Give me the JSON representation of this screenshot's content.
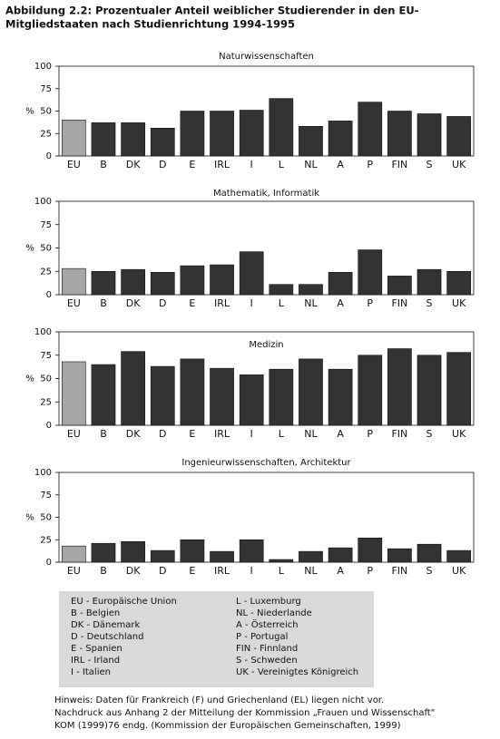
{
  "header": {
    "title_lines": [
      "Abbildung 2.2: Prozentualer Anteil weiblicher Studierender in den EU-",
      "Mitgliedstaaten nach Studienrichtung 1994-1995"
    ]
  },
  "chart_data": [
    {
      "type": "bar",
      "title": "Naturwissenschaften",
      "ylabel": "%",
      "categories": [
        "EU",
        "B",
        "DK",
        "D",
        "E",
        "IRL",
        "I",
        "L",
        "NL",
        "A",
        "P",
        "FIN",
        "S",
        "UK"
      ],
      "values": [
        40,
        37,
        37,
        31,
        50,
        50,
        51,
        64,
        33,
        39,
        60,
        50,
        47,
        44
      ],
      "colors": [
        "#a6a6a6",
        "#333333",
        "#333333",
        "#333333",
        "#333333",
        "#333333",
        "#333333",
        "#333333",
        "#333333",
        "#333333",
        "#333333",
        "#333333",
        "#333333",
        "#333333"
      ],
      "ylim": [
        0,
        100
      ],
      "yticks": [
        0,
        25,
        50,
        75,
        100
      ],
      "grid": false
    },
    {
      "type": "bar",
      "title": "Mathematik, Informatik",
      "ylabel": "%",
      "categories": [
        "EU",
        "B",
        "DK",
        "D",
        "E",
        "IRL",
        "I",
        "L",
        "NL",
        "A",
        "P",
        "FIN",
        "S",
        "UK"
      ],
      "values": [
        28,
        25,
        27,
        24,
        31,
        32,
        46,
        11,
        11,
        24,
        48,
        20,
        27,
        25
      ],
      "colors": [
        "#a6a6a6",
        "#333333",
        "#333333",
        "#333333",
        "#333333",
        "#333333",
        "#333333",
        "#333333",
        "#333333",
        "#333333",
        "#333333",
        "#333333",
        "#333333",
        "#333333"
      ],
      "ylim": [
        0,
        100
      ],
      "yticks": [
        0,
        25,
        50,
        75,
        100
      ],
      "grid": false
    },
    {
      "type": "bar",
      "title": "Medizin",
      "ylabel": "%",
      "categories": [
        "EU",
        "B",
        "DK",
        "D",
        "E",
        "IRL",
        "I",
        "L",
        "NL",
        "A",
        "P",
        "FIN",
        "S",
        "UK"
      ],
      "values": [
        68,
        65,
        79,
        63,
        71,
        61,
        54,
        60,
        71,
        60,
        75,
        82,
        75,
        78
      ],
      "colors": [
        "#a6a6a6",
        "#333333",
        "#333333",
        "#333333",
        "#333333",
        "#333333",
        "#333333",
        "#333333",
        "#333333",
        "#333333",
        "#333333",
        "#333333",
        "#333333",
        "#333333"
      ],
      "ylim": [
        0,
        100
      ],
      "yticks": [
        0,
        25,
        50,
        75,
        100
      ],
      "grid": false
    },
    {
      "type": "bar",
      "title": "Ingenieurwissenschaften, Architektur",
      "ylabel": "%",
      "categories": [
        "EU",
        "B",
        "DK",
        "D",
        "E",
        "IRL",
        "I",
        "L",
        "NL",
        "A",
        "P",
        "FIN",
        "S",
        "UK"
      ],
      "values": [
        18,
        21,
        23,
        13,
        25,
        12,
        25,
        3,
        12,
        16,
        27,
        15,
        20,
        13
      ],
      "colors": [
        "#a6a6a6",
        "#333333",
        "#333333",
        "#333333",
        "#333333",
        "#333333",
        "#333333",
        "#333333",
        "#333333",
        "#333333",
        "#333333",
        "#333333",
        "#333333",
        "#333333"
      ],
      "ylim": [
        0,
        100
      ],
      "yticks": [
        0,
        25,
        50,
        75,
        100
      ],
      "grid": false
    }
  ],
  "legend_box": {
    "left": [
      "EU - Europäische Union",
      "B - Belgien",
      "DK - Dänemark",
      "D - Deutschland",
      "E - Spanien",
      "IRL - Irland",
      "I - Italien"
    ],
    "right": [
      "L - Luxemburg",
      "NL - Niederlande",
      "A - Österreich",
      "P - Portugal",
      "FIN - Finnland",
      "S - Schweden",
      "UK - Vereinigtes Königreich"
    ]
  },
  "notes": [
    "Hinweis: Daten für Frankreich (F) und Griechenland (EL) liegen nicht vor.",
    "Nachdruck aus Anhang 2 der Mitteilung der Kommission „Frauen und Wissenschaft\"",
    "KOM (1999)76 endg. (Kommission der Europäischen Gemeinschaften, 1999)"
  ]
}
